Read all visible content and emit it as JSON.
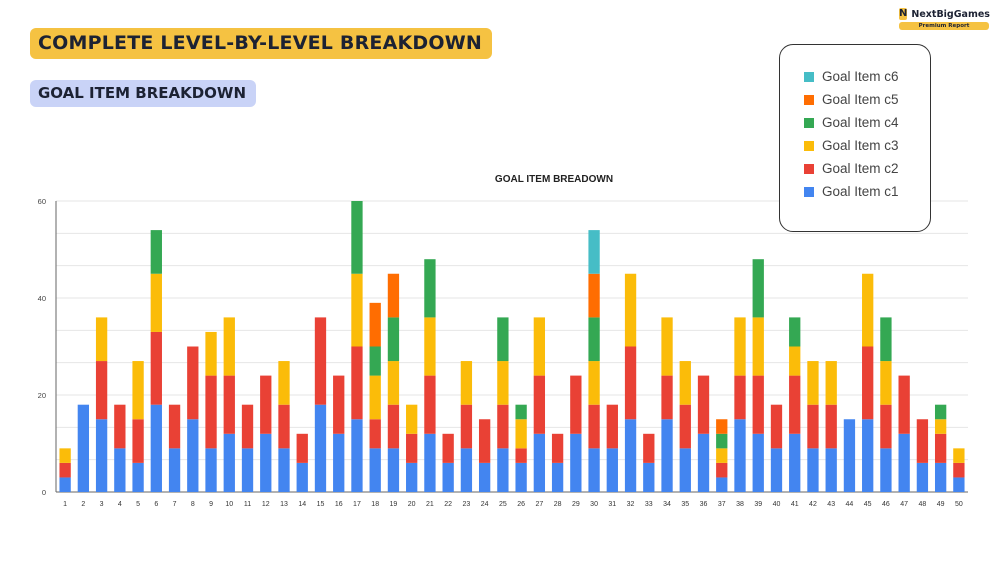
{
  "header": {
    "title": "COMPLETE LEVEL-BY-LEVEL BREAKDOWN",
    "subtitle": "GOAL ITEM BREAKDOWN"
  },
  "brand": {
    "name": "NextBigGames",
    "logo_letter": "N",
    "badge": "Premium Report"
  },
  "colors": {
    "c1": "#4385f0",
    "c2": "#e94135",
    "c3": "#fbbc09",
    "c4": "#34a853",
    "c5": "#ff6d01",
    "c6": "#46bdc6",
    "brand": "#f5c242"
  },
  "legend": [
    {
      "label": "Goal Item c6",
      "color": "#46bdc6"
    },
    {
      "label": "Goal Item c5",
      "color": "#ff6d01"
    },
    {
      "label": "Goal Item c4",
      "color": "#34a853"
    },
    {
      "label": "Goal Item c3",
      "color": "#fbbc09"
    },
    {
      "label": "Goal Item c2",
      "color": "#e94135"
    },
    {
      "label": "Goal Item c1",
      "color": "#4385f0"
    }
  ],
  "chart_data": {
    "type": "bar",
    "stacked": true,
    "title": "GOAL ITEM BREADOWN",
    "xlabel": "",
    "ylabel": "",
    "ylim": [
      0,
      60
    ],
    "yticks": [
      0,
      20,
      40,
      60
    ],
    "grid": true,
    "legend_position": "top-right",
    "categories": [
      "1",
      "2",
      "3",
      "4",
      "5",
      "6",
      "7",
      "8",
      "9",
      "10",
      "11",
      "12",
      "13",
      "14",
      "15",
      "16",
      "17",
      "18",
      "19",
      "20",
      "21",
      "22",
      "23",
      "24",
      "25",
      "26",
      "27",
      "28",
      "29",
      "30",
      "31",
      "32",
      "33",
      "34",
      "35",
      "36",
      "37",
      "38",
      "39",
      "40",
      "41",
      "42",
      "43",
      "44",
      "45",
      "46",
      "47",
      "48",
      "49",
      "50"
    ],
    "series": [
      {
        "name": "Goal Item c1",
        "color": "#4385f0",
        "values": [
          3,
          18,
          15,
          9,
          6,
          18,
          9,
          15,
          9,
          12,
          9,
          12,
          9,
          6,
          18,
          12,
          15,
          9,
          9,
          6,
          12,
          6,
          9,
          6,
          9,
          6,
          12,
          6,
          12,
          9,
          9,
          15,
          6,
          15,
          9,
          12,
          3,
          15,
          12,
          9,
          12,
          9,
          9,
          15,
          15,
          9,
          12,
          6,
          6,
          3
        ]
      },
      {
        "name": "Goal Item c2",
        "color": "#e94135",
        "values": [
          3,
          0,
          12,
          9,
          9,
          15,
          9,
          15,
          15,
          12,
          9,
          12,
          9,
          6,
          18,
          12,
          15,
          6,
          9,
          6,
          12,
          6,
          9,
          9,
          9,
          3,
          12,
          6,
          12,
          9,
          9,
          15,
          6,
          9,
          9,
          12,
          3,
          9,
          12,
          9,
          12,
          9,
          9,
          0,
          15,
          9,
          12,
          9,
          6,
          3
        ]
      },
      {
        "name": "Goal Item c3",
        "color": "#fbbc09",
        "values": [
          3,
          0,
          9,
          0,
          12,
          12,
          0,
          0,
          9,
          12,
          0,
          0,
          9,
          0,
          0,
          0,
          15,
          9,
          9,
          6,
          12,
          0,
          9,
          0,
          9,
          6,
          12,
          0,
          0,
          9,
          0,
          15,
          0,
          12,
          9,
          0,
          3,
          12,
          12,
          0,
          6,
          9,
          9,
          0,
          15,
          9,
          0,
          0,
          3,
          3
        ]
      },
      {
        "name": "Goal Item c4",
        "color": "#34a853",
        "values": [
          0,
          0,
          0,
          0,
          0,
          9,
          0,
          0,
          0,
          0,
          0,
          0,
          0,
          0,
          0,
          0,
          15,
          6,
          9,
          0,
          12,
          0,
          0,
          0,
          9,
          3,
          0,
          0,
          0,
          9,
          0,
          0,
          0,
          0,
          0,
          0,
          3,
          0,
          12,
          0,
          6,
          0,
          0,
          0,
          0,
          9,
          0,
          0,
          3,
          0
        ]
      },
      {
        "name": "Goal Item c5",
        "color": "#ff6d01",
        "values": [
          0,
          0,
          0,
          0,
          0,
          0,
          0,
          0,
          0,
          0,
          0,
          0,
          0,
          0,
          0,
          0,
          0,
          9,
          9,
          0,
          0,
          0,
          0,
          0,
          0,
          0,
          0,
          0,
          0,
          9,
          0,
          0,
          0,
          0,
          0,
          0,
          3,
          0,
          0,
          0,
          0,
          0,
          0,
          0,
          0,
          0,
          0,
          0,
          0,
          0
        ]
      },
      {
        "name": "Goal Item c6",
        "color": "#46bdc6",
        "values": [
          0,
          0,
          0,
          0,
          0,
          0,
          0,
          0,
          0,
          0,
          0,
          0,
          0,
          0,
          0,
          0,
          0,
          0,
          0,
          0,
          0,
          0,
          0,
          0,
          0,
          0,
          0,
          0,
          0,
          9,
          0,
          0,
          0,
          0,
          0,
          0,
          0,
          0,
          0,
          0,
          0,
          0,
          0,
          0,
          0,
          0,
          0,
          0,
          0,
          0
        ]
      }
    ]
  }
}
